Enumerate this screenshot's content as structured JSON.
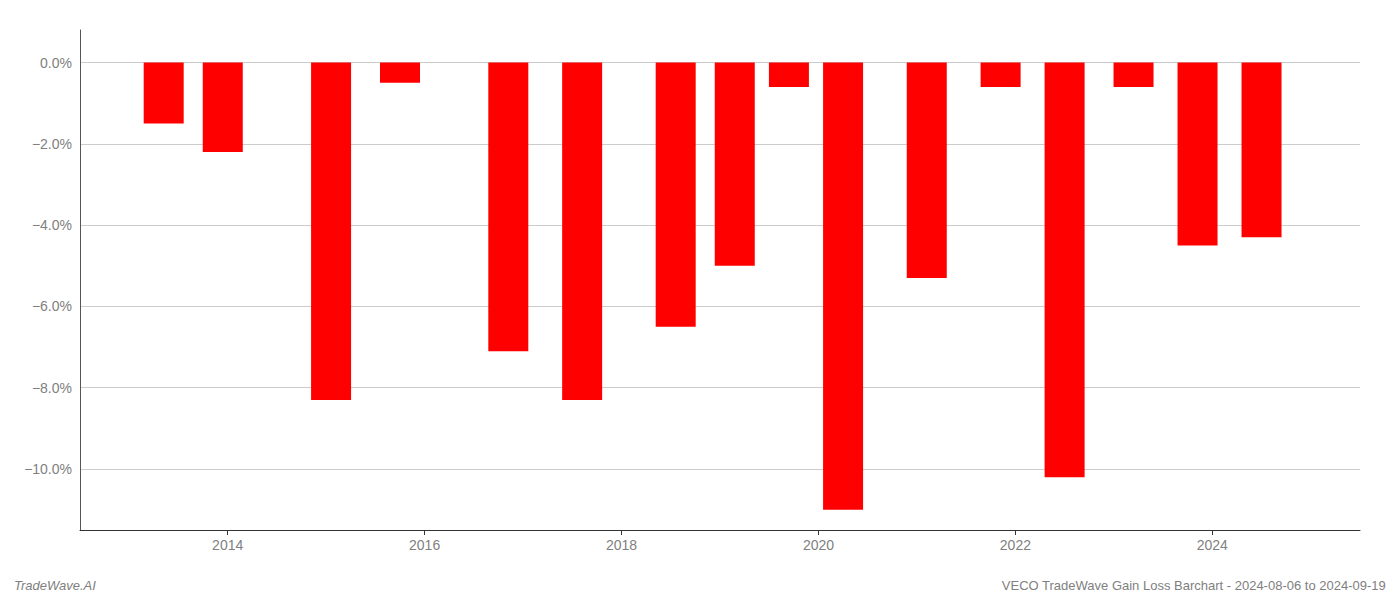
{
  "chart_data": {
    "type": "bar",
    "x": [
      2013.35,
      2013.95,
      2015.05,
      2015.75,
      2016.85,
      2017.6,
      2018.55,
      2019.15,
      2019.7,
      2020.25,
      2021.1,
      2021.85,
      2022.5,
      2023.2,
      2023.85,
      2024.5
    ],
    "values": [
      -1.5,
      -2.2,
      -8.3,
      -0.5,
      -7.1,
      -8.3,
      -6.5,
      -5.0,
      -0.6,
      -11.0,
      -5.3,
      -0.6,
      -10.2,
      -0.6,
      -4.5,
      -4.3
    ],
    "color": "#ff0000",
    "xlim": [
      2012.5,
      2025.5
    ],
    "xticks": [
      2014,
      2016,
      2018,
      2020,
      2022,
      2024
    ],
    "ylim": [
      -11.5,
      0.8
    ],
    "yticks": [
      {
        "value": 0.0,
        "label": "0.0%"
      },
      {
        "value": -2.0,
        "label": "−2.0%"
      },
      {
        "value": -4.0,
        "label": "−4.0%"
      },
      {
        "value": -6.0,
        "label": "−6.0%"
      },
      {
        "value": -8.0,
        "label": "−8.0%"
      },
      {
        "value": -10.0,
        "label": "−10.0%"
      }
    ],
    "grid": true,
    "annotations": [
      "TradeWave.AI",
      "VECO TradeWave Gain Loss Barchart - 2024-08-06 to 2024-09-19"
    ]
  }
}
